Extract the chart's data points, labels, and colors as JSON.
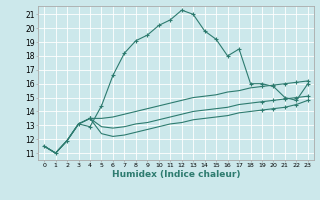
{
  "xlabel": "Humidex (Indice chaleur)",
  "background_color": "#cce8eb",
  "grid_color": "#ffffff",
  "line_color": "#2d7b6f",
  "xlim": [
    -0.5,
    23.5
  ],
  "ylim": [
    10.5,
    21.6
  ],
  "xticks": [
    0,
    1,
    2,
    3,
    4,
    5,
    6,
    7,
    8,
    9,
    10,
    11,
    12,
    13,
    14,
    15,
    16,
    17,
    18,
    19,
    20,
    21,
    22,
    23
  ],
  "yticks": [
    11,
    12,
    13,
    14,
    15,
    16,
    17,
    18,
    19,
    20,
    21
  ],
  "c1x": [
    0,
    1,
    2,
    3,
    4,
    5,
    6,
    7,
    8,
    9,
    10,
    11,
    12,
    13,
    14,
    15,
    16,
    17,
    18,
    19,
    20,
    21,
    22,
    23
  ],
  "c1y": [
    11.5,
    11.0,
    11.9,
    13.1,
    12.9,
    14.4,
    16.6,
    18.2,
    19.1,
    19.5,
    20.2,
    20.6,
    21.3,
    21.0,
    19.8,
    19.2,
    18.0,
    18.5,
    16.0,
    16.0,
    15.8,
    15.0,
    14.8,
    16.0
  ],
  "c2x": [
    0,
    1,
    2,
    3,
    4,
    5,
    6,
    7,
    8,
    9,
    10,
    11,
    12,
    13,
    14,
    15,
    16,
    17,
    18,
    19,
    20,
    21,
    22,
    23
  ],
  "c2y": [
    11.5,
    11.0,
    11.9,
    13.1,
    13.5,
    13.5,
    13.6,
    13.8,
    14.0,
    14.2,
    14.4,
    14.6,
    14.8,
    15.0,
    15.1,
    15.2,
    15.4,
    15.5,
    15.7,
    15.8,
    15.9,
    16.0,
    16.1,
    16.2
  ],
  "c3x": [
    0,
    1,
    2,
    3,
    4,
    5,
    6,
    7,
    8,
    9,
    10,
    11,
    12,
    13,
    14,
    15,
    16,
    17,
    18,
    19,
    20,
    21,
    22,
    23
  ],
  "c3y": [
    11.5,
    11.0,
    11.9,
    13.1,
    13.5,
    12.9,
    12.8,
    12.9,
    13.1,
    13.2,
    13.4,
    13.6,
    13.8,
    14.0,
    14.1,
    14.2,
    14.3,
    14.5,
    14.6,
    14.7,
    14.8,
    14.9,
    15.0,
    15.1
  ],
  "c4x": [
    0,
    1,
    2,
    3,
    4,
    5,
    6,
    7,
    8,
    9,
    10,
    11,
    12,
    13,
    14,
    15,
    16,
    17,
    18,
    19,
    20,
    21,
    22,
    23
  ],
  "c4y": [
    11.5,
    11.0,
    11.9,
    13.1,
    13.5,
    12.4,
    12.2,
    12.3,
    12.5,
    12.7,
    12.9,
    13.1,
    13.2,
    13.4,
    13.5,
    13.6,
    13.7,
    13.9,
    14.0,
    14.1,
    14.2,
    14.3,
    14.5,
    14.8
  ],
  "c2_markers": [
    4,
    19,
    20,
    21,
    22,
    23
  ],
  "c3_markers": [
    4,
    19,
    20,
    21,
    22,
    23
  ],
  "c4_markers": [
    4,
    19,
    20,
    21,
    22,
    23
  ]
}
